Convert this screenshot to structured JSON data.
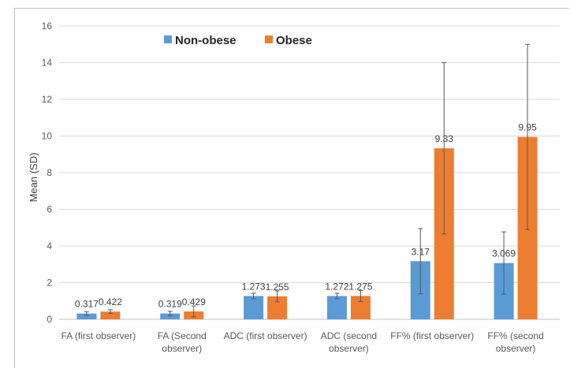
{
  "chart_data": {
    "type": "bar",
    "title": "",
    "xlabel": "",
    "ylabel": "Mean (SD)",
    "ylim": [
      0,
      16
    ],
    "yticks": [
      0,
      2,
      4,
      6,
      8,
      10,
      12,
      14,
      16
    ],
    "grid": true,
    "legend_position": "top-center",
    "categories": [
      [
        "FA  (first observer)"
      ],
      [
        "FA  (Second",
        "observer)"
      ],
      [
        "ADC (first observer)"
      ],
      [
        "ADC  (second",
        "observer)"
      ],
      [
        "FF% (first observer)"
      ],
      [
        "FF% (second",
        "observer)"
      ]
    ],
    "series": [
      {
        "name": "Non-obese",
        "color": "#5b9bd5",
        "values": [
          0.317,
          0.319,
          1.273,
          1.272,
          3.17,
          3.069
        ],
        "labels": [
          "0.317",
          "0.319",
          "1.273",
          "1.272",
          "3.17",
          "3.069"
        ],
        "error": [
          0.1,
          0.12,
          0.15,
          0.15,
          1.78,
          1.7
        ]
      },
      {
        "name": "Obese",
        "color": "#ed7d31",
        "values": [
          0.422,
          0.429,
          1.255,
          1.275,
          9.33,
          9.95
        ],
        "labels": [
          "0.422",
          "0.429",
          "1.255",
          "1.275",
          "9.33",
          "9.95"
        ],
        "error": [
          0.1,
          0.3,
          0.3,
          0.3,
          4.67,
          5.05
        ]
      }
    ]
  }
}
